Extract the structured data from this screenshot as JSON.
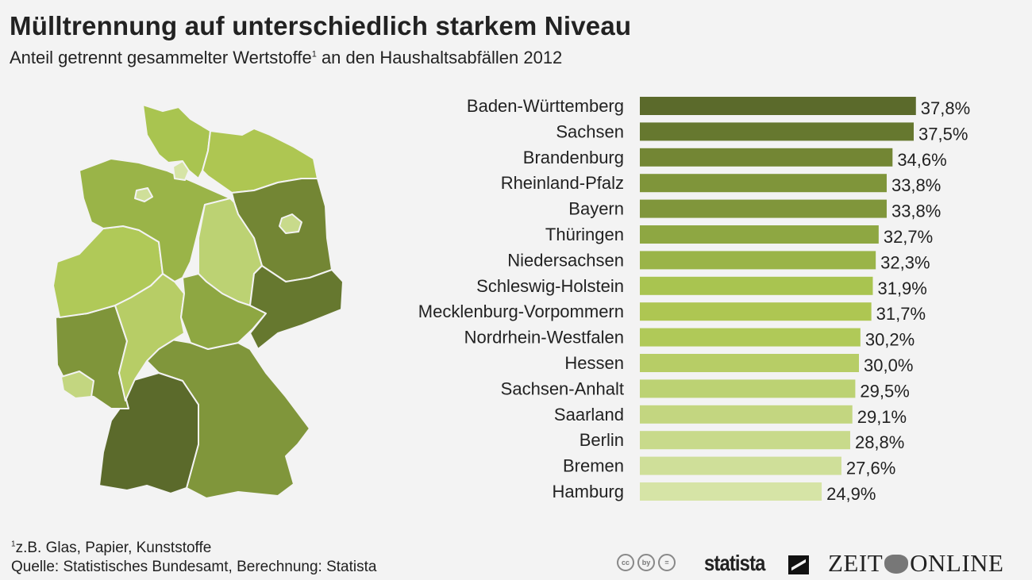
{
  "title": "Mülltrennung auf unterschiedlich starkem Niveau",
  "subtitle_main": "Anteil getrennt gesammelter Wertstoffe",
  "subtitle_sup": "1",
  "subtitle_rest": " an den Haushaltsabfällen 2012",
  "footnote_sup": "1",
  "footnote": "z.B. Glas, Papier, Kunststoffe",
  "source": "Quelle: Statistisches Bundesamt, Berechnung: Statista",
  "logos": {
    "cc": [
      "cc",
      "by",
      "="
    ],
    "statista": "statista",
    "zeit_left": "ZEIT",
    "zeit_right": "ONLINE"
  },
  "chart_data": {
    "type": "bar",
    "orientation": "horizontal",
    "title": "Mülltrennung auf unterschiedlich starkem Niveau",
    "subtitle": "Anteil getrennt gesammelter Wertstoffe an den Haushaltsabfällen 2012",
    "unit": "%",
    "xlim": [
      0,
      40
    ],
    "categories": [
      "Baden-Württemberg",
      "Sachsen",
      "Brandenburg",
      "Rheinland-Pfalz",
      "Bayern",
      "Thüringen",
      "Niedersachsen",
      "Schleswig-Holstein",
      "Mecklenburg-Vorpommern",
      "Nordrhein-Westfalen",
      "Hessen",
      "Sachsen-Anhalt",
      "Saarland",
      "Berlin",
      "Bremen",
      "Hamburg"
    ],
    "values": [
      37.8,
      37.5,
      34.6,
      33.8,
      33.8,
      32.7,
      32.3,
      31.9,
      31.7,
      30.2,
      30.0,
      29.5,
      29.1,
      28.8,
      27.6,
      24.9
    ],
    "labels": [
      "37,8%",
      "37,5%",
      "34,6%",
      "33,8%",
      "33,8%",
      "32,7%",
      "32,3%",
      "31,9%",
      "31,7%",
      "30,2%",
      "30,0%",
      "29,5%",
      "29,1%",
      "28,8%",
      "27,6%",
      "24,9%"
    ],
    "colors": [
      "#5b6a2b",
      "#66782f",
      "#738634",
      "#7f953a",
      "#80963b",
      "#8ea742",
      "#9ab448",
      "#a9c450",
      "#aec652",
      "#b0c958",
      "#b7cd66",
      "#bcd273",
      "#c3d680",
      "#c8da8b",
      "#cfdf99",
      "#d6e4a6"
    ]
  }
}
